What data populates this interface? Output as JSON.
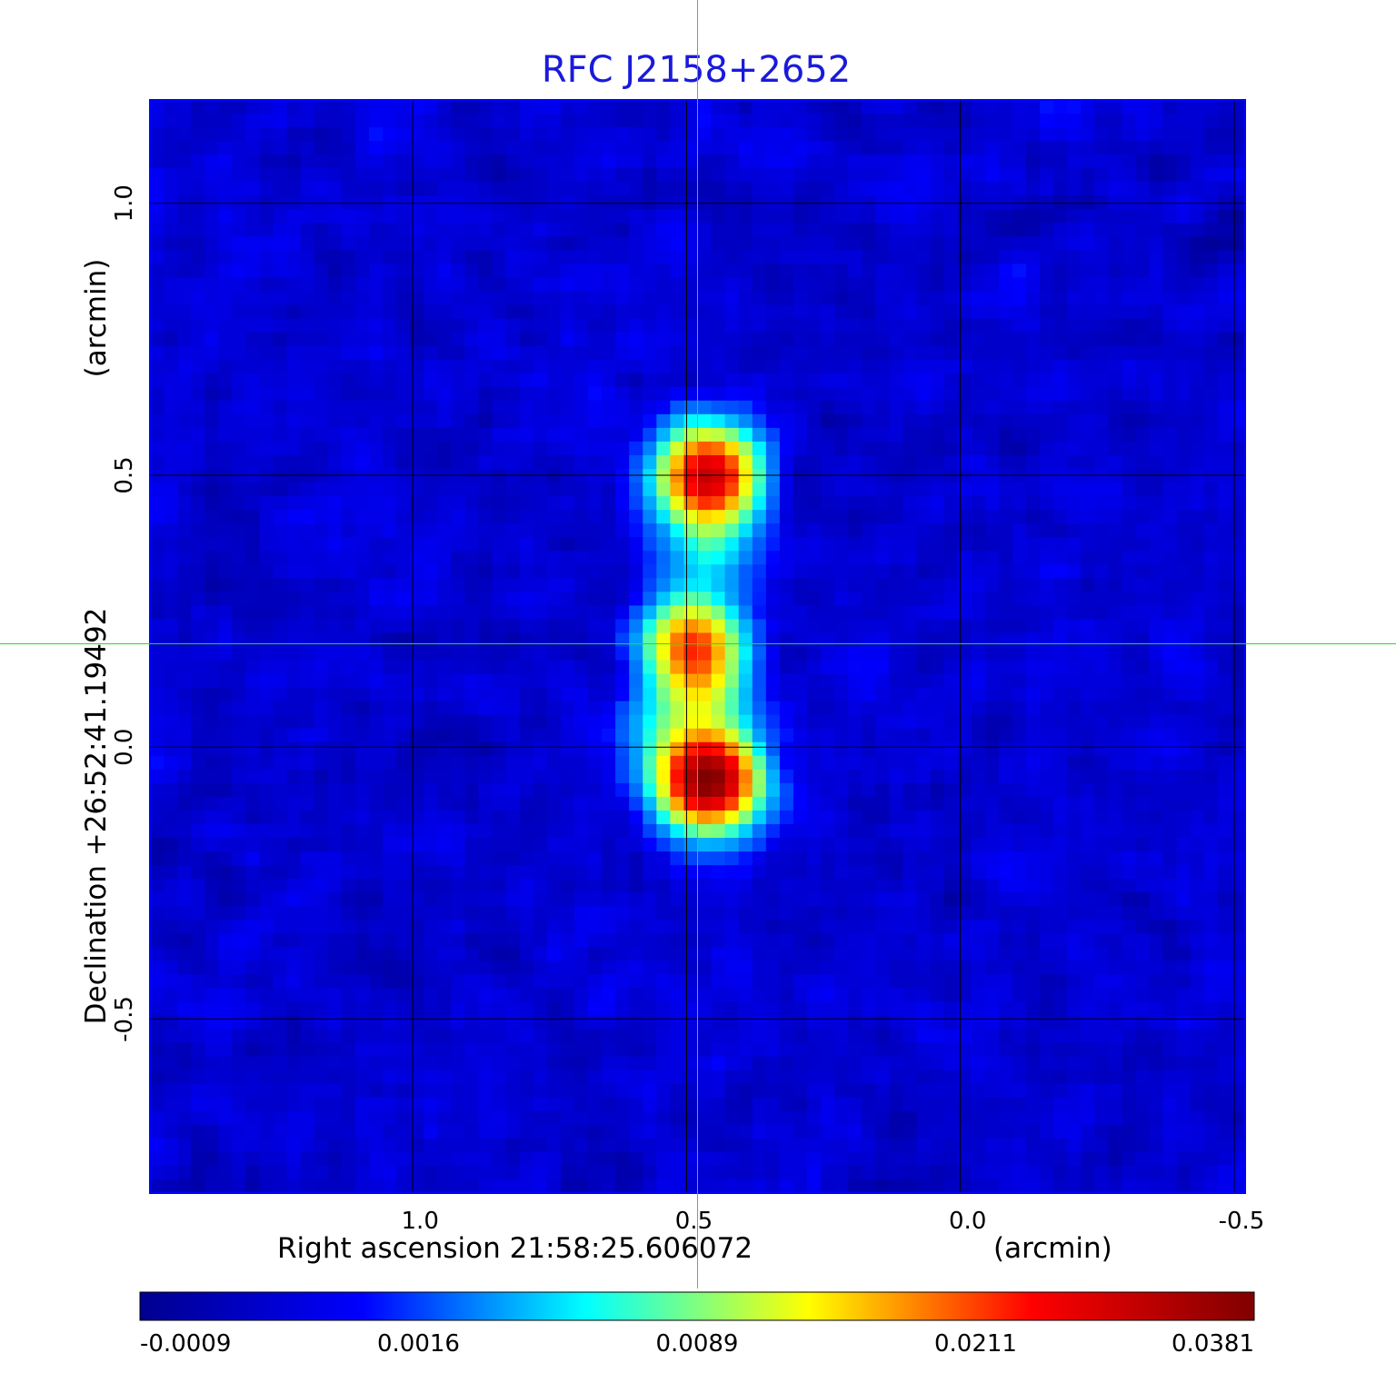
{
  "chart_data": {
    "type": "heatmap",
    "title": "RFC J2158+2652",
    "xlabel": "Right ascension  21:58:25.606072",
    "xlabel_unit": "(arcmin)",
    "ylabel": "Declination  +26:52:41.19492",
    "ylabel_unit": "(arcmin)",
    "x_axis": {
      "direction": "decreasing-to-right",
      "range": [
        1.48,
        -0.52
      ],
      "ticks": [
        1.0,
        0.5,
        0.0,
        -0.5
      ],
      "tick_labels": [
        "1.0",
        "0.5",
        "0.0",
        "-0.5"
      ]
    },
    "y_axis": {
      "range": [
        -0.82,
        1.19
      ],
      "ticks": [
        1.0,
        0.5,
        0.0,
        -0.5
      ],
      "tick_labels": [
        "1.0",
        "0.5",
        "0.0",
        "-0.5"
      ]
    },
    "grid": true,
    "crosshair": {
      "x": 0.48,
      "y": 0.19,
      "color": "#22dd22"
    },
    "colormap": "jet",
    "colorbar": {
      "ticks": [
        -0.0009,
        0.0016,
        0.0089,
        0.0211,
        0.0381
      ],
      "tick_labels": [
        "-0.0009",
        "0.0016",
        "0.0089",
        "0.0211",
        "0.0381"
      ],
      "colors": [
        "#00008f",
        "#0000ff",
        "#00ffff",
        "#ffff00",
        "#ff0000",
        "#800000"
      ]
    },
    "components": [
      {
        "x": 0.46,
        "y": 0.5,
        "peak": 0.03
      },
      {
        "x": 0.46,
        "y": 0.37,
        "peak": 0.006
      },
      {
        "x": 0.49,
        "y": 0.19,
        "peak": 0.02
      },
      {
        "x": 0.47,
        "y": 0.1,
        "peak": 0.0085
      },
      {
        "x": 0.46,
        "y": -0.06,
        "peak": 0.038
      },
      {
        "x": 0.54,
        "y": 0.02,
        "peak": 0.004
      }
    ],
    "background_level": 0.0003,
    "palette": {
      "title": "#1a1adb",
      "frame": "#0000ff",
      "grid": "#000000",
      "background": "#ffffff"
    }
  }
}
